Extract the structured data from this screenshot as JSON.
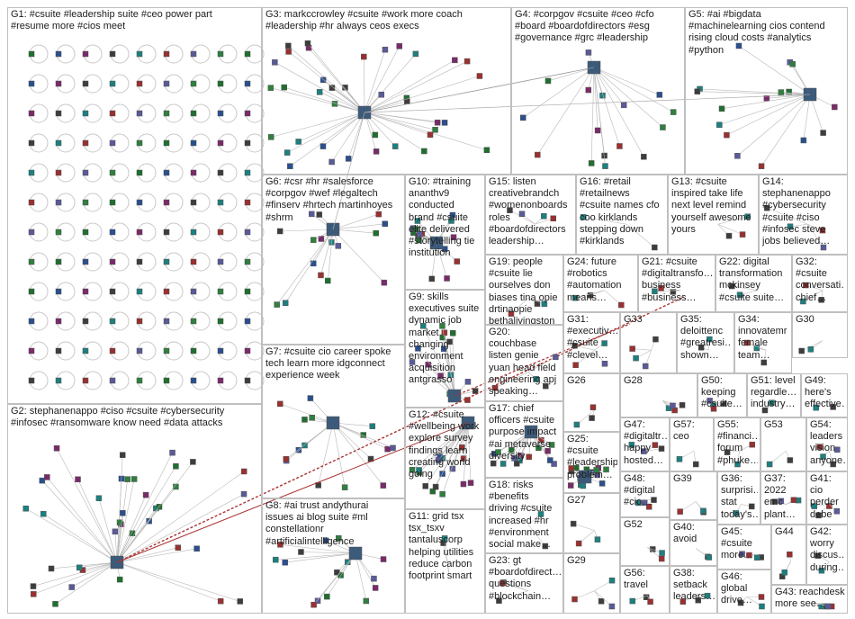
{
  "groups": [
    {
      "id": "G1",
      "label": "G1: #csuite #leadership suite #ceo power part\n#resume more #cios meet"
    },
    {
      "id": "G2",
      "label": "G2: stephanenappo #ciso #csuite #cybersecurity\n#infosec #ransomware know need #data attacks"
    },
    {
      "id": "G3",
      "label": "G3: markccrowley #csuite #work more coach\n#leadership #hr always ceos execs"
    },
    {
      "id": "G4",
      "label": "G4: #corpgov #csuite #ceo #cfo\n#board #boardofdirectors #esg\n#governance #grc #leadership"
    },
    {
      "id": "G5",
      "label": "G5: #ai #bigdata\n#machinelearning cios contend\nrising cloud costs #analytics\n#python"
    },
    {
      "id": "G6",
      "label": "G6: #csr #hr #salesforce\n#corpgov #wef #legaltech\n#finserv #hrtech martinhoyes\n#shrm"
    },
    {
      "id": "G7",
      "label": "G7: #csuite cio career spoke\ntech learn more idgconnect\nexperience week"
    },
    {
      "id": "G8",
      "label": "G8: #ai trust andythurai\nissues ai blog suite #ml\nconstellationr\n#artificialintelligence"
    },
    {
      "id": "G9",
      "label": "G9: skills\nexecutives suite\ndynamic job\nmarket\nchanging\nenvironment\nacquisition\nantgrasso"
    },
    {
      "id": "G10",
      "label": "G10: #training\nananthv9\nconducted\nbrand #csuite\nelite delivered\n#storytelling tie\ninstitution"
    },
    {
      "id": "G11",
      "label": "G11: grid tsx\ntsx_tsxv\ntantaluscorp\nhelping utilities\nreduce carbon\nfootprint smart"
    },
    {
      "id": "G12",
      "label": "G12: #csuite\n#wellbeing work\nexplore survey\nfindings learn\ncreating world\ngoing"
    },
    {
      "id": "G13",
      "label": "G13: #csuite\ninspired take life\nnext level remind\nyourself awesome\nyours"
    },
    {
      "id": "G14",
      "label": "G14:\nstephanenappo\n#cybersecurity\n#csuite #ciso\n#infosec steve\njobs believed…"
    },
    {
      "id": "G15",
      "label": "G15: listen\ncreativebrandch\n#womenonboards\nroles\n#boardofdirectors\nleadership…"
    },
    {
      "id": "G16",
      "label": "G16: #retail\n#retailnews\n#csuite names cfo\ncoo kirklands\nstepping down\n#kirklands"
    },
    {
      "id": "G17",
      "label": "G17: chief\nofficers #csuite\npurpose impact\n#ai metaverse\ndiversity"
    },
    {
      "id": "G18",
      "label": "G18: risks\n#benefits\ndriving #csuite\nincreased #hr\n#environment\nsocial make…"
    },
    {
      "id": "G19",
      "label": "G19: people\n#csuite lie\nourselves don\nbiases tina opie\ndrtinaopie\nbethalivingston"
    },
    {
      "id": "G20",
      "label": "G20:\ncouchbase\nlisten genie\nyuan head field\nengineering apj\nspeaking…"
    },
    {
      "id": "G21",
      "label": "G21: #csuite\n#digitaltransfo…\nbusiness\n#business…"
    },
    {
      "id": "G22",
      "label": "G22: digital\ntransformation\nmckinsey\n#csuite suite…"
    },
    {
      "id": "G23",
      "label": "G23: gt\n#boardofdirect…\nquestions\n#blockchain…"
    },
    {
      "id": "G24",
      "label": "G24: future\n#robotics\n#automation\nmeans…"
    },
    {
      "id": "G25",
      "label": "G25:\n#csuite\n#leadership\nproblem…"
    },
    {
      "id": "G26",
      "label": "G26"
    },
    {
      "id": "G27",
      "label": "G27"
    },
    {
      "id": "G28",
      "label": "G28"
    },
    {
      "id": "G29",
      "label": "G29"
    },
    {
      "id": "G30",
      "label": "G30"
    },
    {
      "id": "G31",
      "label": "G31:\n#executiv…\n#csuite\n#clevel…"
    },
    {
      "id": "G32",
      "label": "G32:\n#csuite\nconversati…\nchief…"
    },
    {
      "id": "G33",
      "label": "G33"
    },
    {
      "id": "G34",
      "label": "G34:\ninnovatemr\nfemale\nteam…"
    },
    {
      "id": "G35",
      "label": "G35:\ndeloittenc\n#greatresi…\nshown…"
    },
    {
      "id": "G36",
      "label": "G36:\nsurprisi…\nstat\ntoday's…"
    },
    {
      "id": "G37",
      "label": "G37:\n2022\nemc\nplant…"
    },
    {
      "id": "G38",
      "label": "G38:\nsetback\nleaders…"
    },
    {
      "id": "G39",
      "label": "G39"
    },
    {
      "id": "G40",
      "label": "G40:\navoid"
    },
    {
      "id": "G41",
      "label": "G41: cio\nperder\ndebe\ngenera…"
    },
    {
      "id": "G42",
      "label": "G42:\nworry\ndiscus…\nduring…"
    },
    {
      "id": "G43",
      "label": "G43: reachdesk\nmore see…"
    },
    {
      "id": "G44",
      "label": "G44"
    },
    {
      "id": "G45",
      "label": "G45:\n#csuite\nmore…"
    },
    {
      "id": "G46",
      "label": "G46:\nglobal\ndrive…"
    },
    {
      "id": "G47",
      "label": "G47:\n#digitaltr…\nhappy\nhosted…"
    },
    {
      "id": "G48",
      "label": "G48:\n#digital\n#cio…"
    },
    {
      "id": "G49",
      "label": "G49:\nhere's\neffective…"
    },
    {
      "id": "G50",
      "label": "G50:\nkeeping\n#csuite…"
    },
    {
      "id": "G51",
      "label": "G51: level\nregardle…\nindustry…"
    },
    {
      "id": "G52",
      "label": "G52"
    },
    {
      "id": "G53",
      "label": "G53"
    },
    {
      "id": "G54",
      "label": "G54:\nleaders\nvision\nanyone…"
    },
    {
      "id": "G55",
      "label": "G55:\n#financi…\nforum\n#phuke…"
    },
    {
      "id": "G56",
      "label": "G56:\ntravel"
    },
    {
      "id": "G57",
      "label": "G57: ceo"
    }
  ]
}
